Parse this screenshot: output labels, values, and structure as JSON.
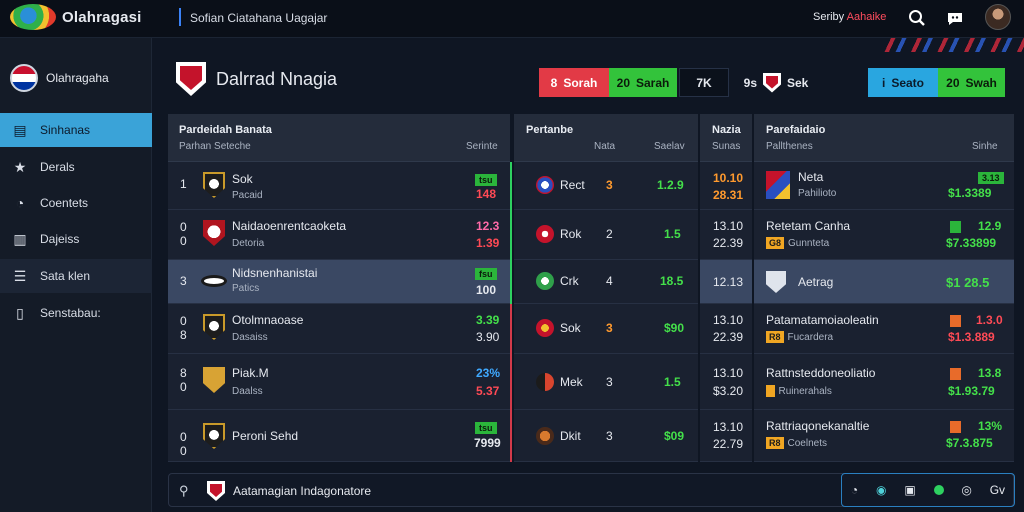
{
  "app": {
    "brand": "Olahragasi",
    "subtitle": "Sofian Ciatahana Uagajar"
  },
  "topbar": {
    "status_prefix": "Seriby",
    "status_accent": "Aahaike"
  },
  "sidebar": {
    "header": "Olahragaha",
    "items": [
      {
        "label": "Sinhanas",
        "icon": "chart-icon"
      },
      {
        "label": "Derals",
        "icon": "star-icon"
      },
      {
        "label": "Coentets",
        "icon": "clock-icon"
      },
      {
        "label": "Dajeiss",
        "icon": "stats-icon"
      },
      {
        "label": "Sata klen",
        "icon": "list-icon"
      },
      {
        "label": "Senstabau:",
        "icon": "book-icon"
      }
    ]
  },
  "match": {
    "title": "Dalrrad Nnagia",
    "pills": [
      {
        "icon": "8",
        "text": "Sorah"
      },
      {
        "icon": "20",
        "text": "Sarah"
      },
      {
        "icon": "",
        "text": "7K"
      },
      {
        "icon": "9s",
        "text": "Sek"
      },
      {
        "icon": "i",
        "text": "Seato"
      },
      {
        "icon": "20",
        "text": "Swah"
      }
    ]
  },
  "colors": {
    "accent": "#3aa3d8",
    "green": "#44e04a",
    "red": "#ff4a55",
    "bg": "#0f1623"
  },
  "table1": {
    "h1": "Pardeidah Banata",
    "h2": "Parhan Seteche",
    "h2r": "Serinte",
    "rows": [
      {
        "rank": "1",
        "name": "Sok",
        "sub": "Pacaid",
        "v1": "tsu",
        "v2": "148"
      },
      {
        "rank": "0\n0",
        "name": "Naidaoenrentcaoketa",
        "sub": "Detoria",
        "v1": "12.3",
        "v2": "1.39"
      },
      {
        "rank": "3",
        "name": "Nidsnenhanistai",
        "sub": "Patics",
        "v1": "fsu",
        "v2": "100"
      },
      {
        "rank": "0\n8",
        "name": "Otolmnaoase",
        "sub": "Dasaiss",
        "v1": "3.39",
        "v2": "3.90"
      },
      {
        "rank": "8\n0",
        "name": "Piak.M",
        "sub": "Daalss",
        "v1": "23%",
        "v2": "5.37"
      },
      {
        "rank": "0\n0",
        "name": "Peroni Sehd",
        "sub": "",
        "v1": "tsu",
        "v2": "7999"
      }
    ]
  },
  "table2": {
    "h1": "Pertanbe",
    "h2a": "Nata",
    "h2b": "Saelav",
    "rows": [
      {
        "name": "Rect",
        "n": "3",
        "v": "1.2.9"
      },
      {
        "name": "Rok",
        "n": "2",
        "v": "1.5"
      },
      {
        "name": "Crk",
        "n": "4",
        "v": "18.5"
      },
      {
        "name": "Sok",
        "n": "3",
        "v": "$90"
      },
      {
        "name": "Mek",
        "n": "3",
        "v": "1.5"
      },
      {
        "name": "Dkit",
        "n": "3",
        "v": "$09"
      }
    ]
  },
  "table3": {
    "h1": "Nazia",
    "h2": "Sunas",
    "rows": [
      {
        "a": "10.10",
        "b": "28.31"
      },
      {
        "a": "13.10",
        "b": "22.39"
      },
      {
        "a": "12.13",
        "b": ""
      },
      {
        "a": "13.10",
        "b": "22.39"
      },
      {
        "a": "13.10",
        "b": "$3.20"
      },
      {
        "a": "13.10",
        "b": "22.79"
      }
    ]
  },
  "table4": {
    "h1": "Parefaidaio",
    "h2": "Pallthenes",
    "h2r": "Sinhe",
    "rows": [
      {
        "name": "Neta",
        "sub": "Pahilioto",
        "tag": "",
        "v1": "3.13",
        "v2": "$1.3389"
      },
      {
        "name": "Retetam Canha",
        "sub": "Gunnteta",
        "tag": "G8",
        "v1": "12.9",
        "v2": "$7.33899"
      },
      {
        "name": "Aetrag",
        "sub": "",
        "tag": "",
        "v1": "$1 28.5",
        "v2": ""
      },
      {
        "name": "Patamatamoiaoleatin",
        "sub": "Fucardera",
        "tag": "R8",
        "v1": "1.3.0",
        "v2": "$1.3.889"
      },
      {
        "name": "Rattnsteddoneoliatio",
        "sub": "Ruinerahals",
        "tag": "",
        "v1": "13.8",
        "v2": "$1.93.79"
      },
      {
        "name": "Rattriaqonekanaltie",
        "sub": "Coelnets",
        "tag": "R8",
        "v1": "13%",
        "v2": "$7.3.875"
      }
    ]
  },
  "bottombar": {
    "label": "Aatamagian Indagonatore",
    "right_label": "Gv"
  }
}
